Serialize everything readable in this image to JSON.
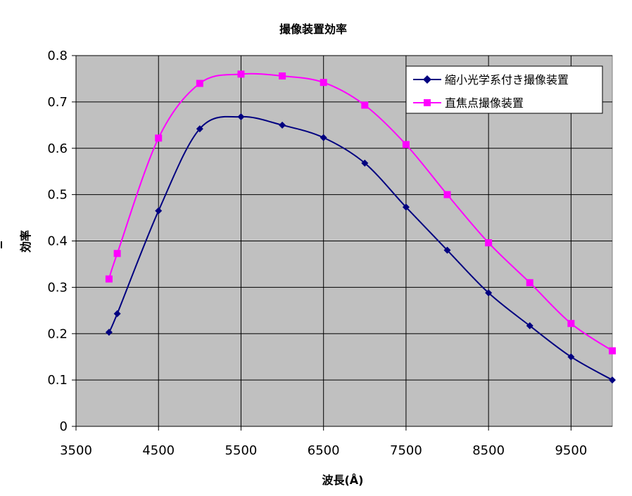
{
  "chart_data": {
    "type": "line",
    "title": "撮像装置効率",
    "xlabel": "波長(Å)",
    "ylabel": "効率",
    "xlim": [
      3500,
      10000
    ],
    "ylim": [
      0,
      0.8
    ],
    "x_ticks": [
      3500,
      4500,
      5500,
      6500,
      7500,
      8500,
      9500
    ],
    "x_tick_labels": [
      "3500",
      "4500",
      "5500",
      "6500",
      "7500",
      "8500",
      "9500"
    ],
    "y_ticks": [
      0,
      0.1,
      0.2,
      0.3,
      0.4,
      0.5,
      0.6,
      0.7,
      0.8
    ],
    "y_tick_labels": [
      "0",
      "0.1",
      "0.2",
      "0.3",
      "0.4",
      "0.5",
      "0.6",
      "0.7",
      "0.8"
    ],
    "grid": true,
    "legend_position": "top-right",
    "plot_background": "#c0c0c0",
    "series": [
      {
        "name": "縮小光学系付き撮像装置",
        "color": "#000080",
        "marker": "diamond",
        "points": [
          {
            "x": 3900,
            "y": 0.203
          },
          {
            "x": 4000,
            "y": 0.243
          },
          {
            "x": 4500,
            "y": 0.465
          },
          {
            "x": 5000,
            "y": 0.642
          },
          {
            "x": 5500,
            "y": 0.668
          },
          {
            "x": 6000,
            "y": 0.65
          },
          {
            "x": 6500,
            "y": 0.623
          },
          {
            "x": 7000,
            "y": 0.568
          },
          {
            "x": 7500,
            "y": 0.473
          },
          {
            "x": 8000,
            "y": 0.38
          },
          {
            "x": 8500,
            "y": 0.288
          },
          {
            "x": 9000,
            "y": 0.217
          },
          {
            "x": 9500,
            "y": 0.15
          },
          {
            "x": 10000,
            "y": 0.1
          }
        ]
      },
      {
        "name": "直焦点撮像装置",
        "color": "#ff00ff",
        "marker": "square",
        "points": [
          {
            "x": 3900,
            "y": 0.318
          },
          {
            "x": 4000,
            "y": 0.373
          },
          {
            "x": 4500,
            "y": 0.622
          },
          {
            "x": 5000,
            "y": 0.74
          },
          {
            "x": 5500,
            "y": 0.76
          },
          {
            "x": 6000,
            "y": 0.756
          },
          {
            "x": 6500,
            "y": 0.742
          },
          {
            "x": 7000,
            "y": 0.693
          },
          {
            "x": 7500,
            "y": 0.608
          },
          {
            "x": 8000,
            "y": 0.5
          },
          {
            "x": 8500,
            "y": 0.396
          },
          {
            "x": 9000,
            "y": 0.31
          },
          {
            "x": 9500,
            "y": 0.222
          },
          {
            "x": 10000,
            "y": 0.163
          }
        ]
      }
    ]
  }
}
